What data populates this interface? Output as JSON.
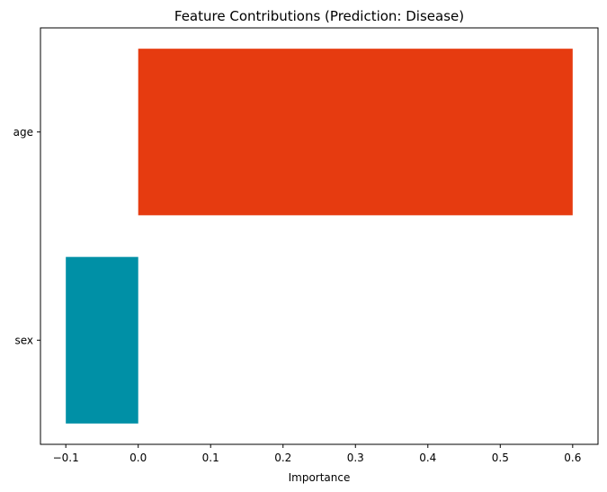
{
  "chart_data": {
    "type": "bar",
    "orientation": "horizontal",
    "title": "Feature Contributions (Prediction: Disease)",
    "xlabel": "Importance",
    "ylabel": "",
    "categories": [
      "sex",
      "age"
    ],
    "values": [
      -0.1,
      0.6
    ],
    "bar_colors": [
      "#0090a6",
      "#e63b10"
    ],
    "xlim": [
      -0.135,
      0.635
    ],
    "xticks": [
      -0.1,
      0.0,
      0.1,
      0.2,
      0.3,
      0.4,
      0.5,
      0.6
    ],
    "xtick_labels": [
      "−0.1",
      "0.0",
      "0.1",
      "0.2",
      "0.3",
      "0.4",
      "0.5",
      "0.6"
    ],
    "grid": false,
    "legend": "none"
  }
}
